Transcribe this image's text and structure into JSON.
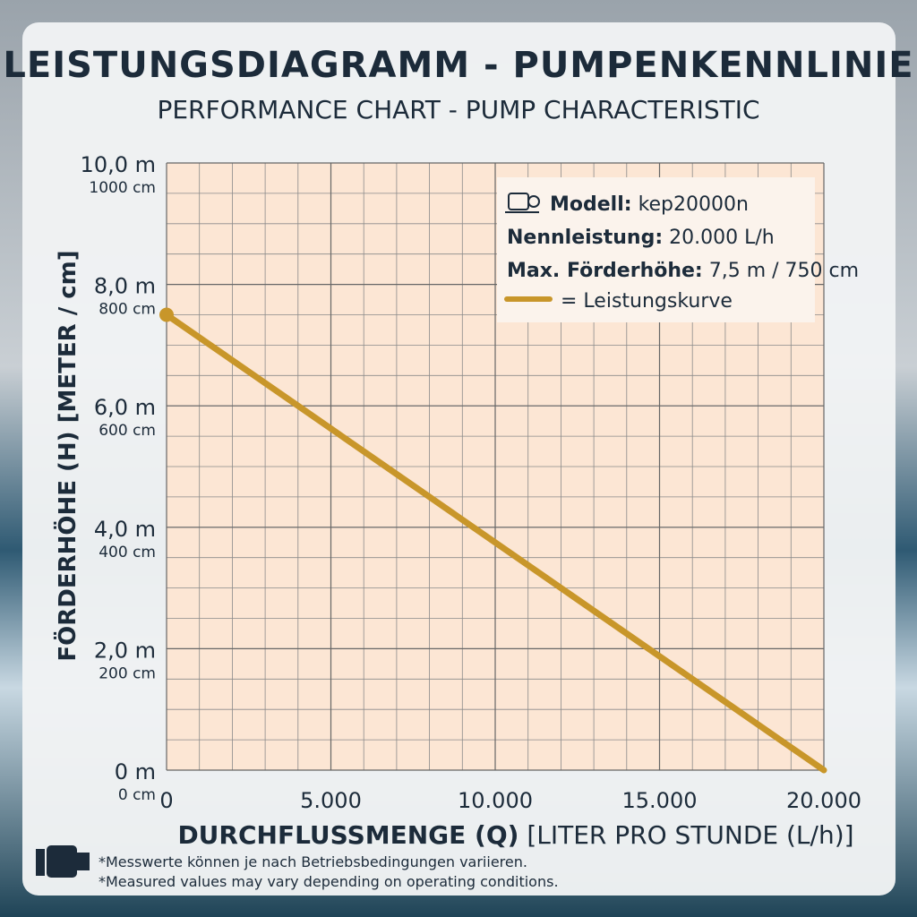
{
  "chart_data": {
    "type": "line",
    "title": "LEISTUNGSDIAGRAMM - PUMPENKENNLINIE",
    "subtitle": "PERFORMANCE CHART - PUMP CHARACTERISTIC",
    "xlabel": [
      "DURCHFLUSSMENGE (Q)",
      "[LITER PRO STUNDE (L/h)]"
    ],
    "ylabel": "FÖRDERHÖHE (H) [METER / cm]",
    "x": [
      0,
      20000
    ],
    "series": [
      {
        "name": "= Leistungskurve",
        "color": "#c8962a",
        "values": [
          7.5,
          0
        ]
      }
    ],
    "xlim": [
      0,
      20000
    ],
    "xticks": [
      0,
      {
        "value": 5000,
        "label": "5.000"
      },
      {
        "value": 10000,
        "label": "10.000"
      },
      {
        "value": 15000,
        "label": "15.000"
      },
      {
        "value": 20000,
        "label": "20.000"
      }
    ],
    "ylim": [
      0,
      10
    ],
    "yticks": [
      {
        "value": 0,
        "label": "0 m"
      },
      {
        "value": 2,
        "label": "2,0 m"
      },
      {
        "value": 4,
        "label": "4,0 m"
      },
      {
        "value": 6,
        "label": "6,0 m"
      },
      {
        "value": 8,
        "label": "8,0 m"
      },
      {
        "value": 10,
        "label": "10,0 m"
      }
    ],
    "y2lim": [
      0,
      1000
    ],
    "y2ticks": [
      {
        "value": 0,
        "label": "0 cm"
      },
      {
        "value": 200,
        "label": "200 cm"
      },
      {
        "value": 400,
        "label": "400 cm"
      },
      {
        "value": 600,
        "label": "600 cm"
      },
      {
        "value": 800,
        "label": "800 cm"
      },
      {
        "value": 1000,
        "label": "1000 cm"
      }
    ],
    "grid": true,
    "info": [
      {
        "label": "Modell:",
        "value": "kep20000n"
      },
      {
        "label": "Nennleistung:",
        "value": "20.000 L/h"
      },
      {
        "label": "Max. Förderhöhe:",
        "value": "7,5 m / 750 cm"
      }
    ],
    "footnotes": [
      "*Messwerte können je nach Betriebsbedingungen variieren.",
      "*Measured values may vary depending on operating conditions."
    ]
  }
}
